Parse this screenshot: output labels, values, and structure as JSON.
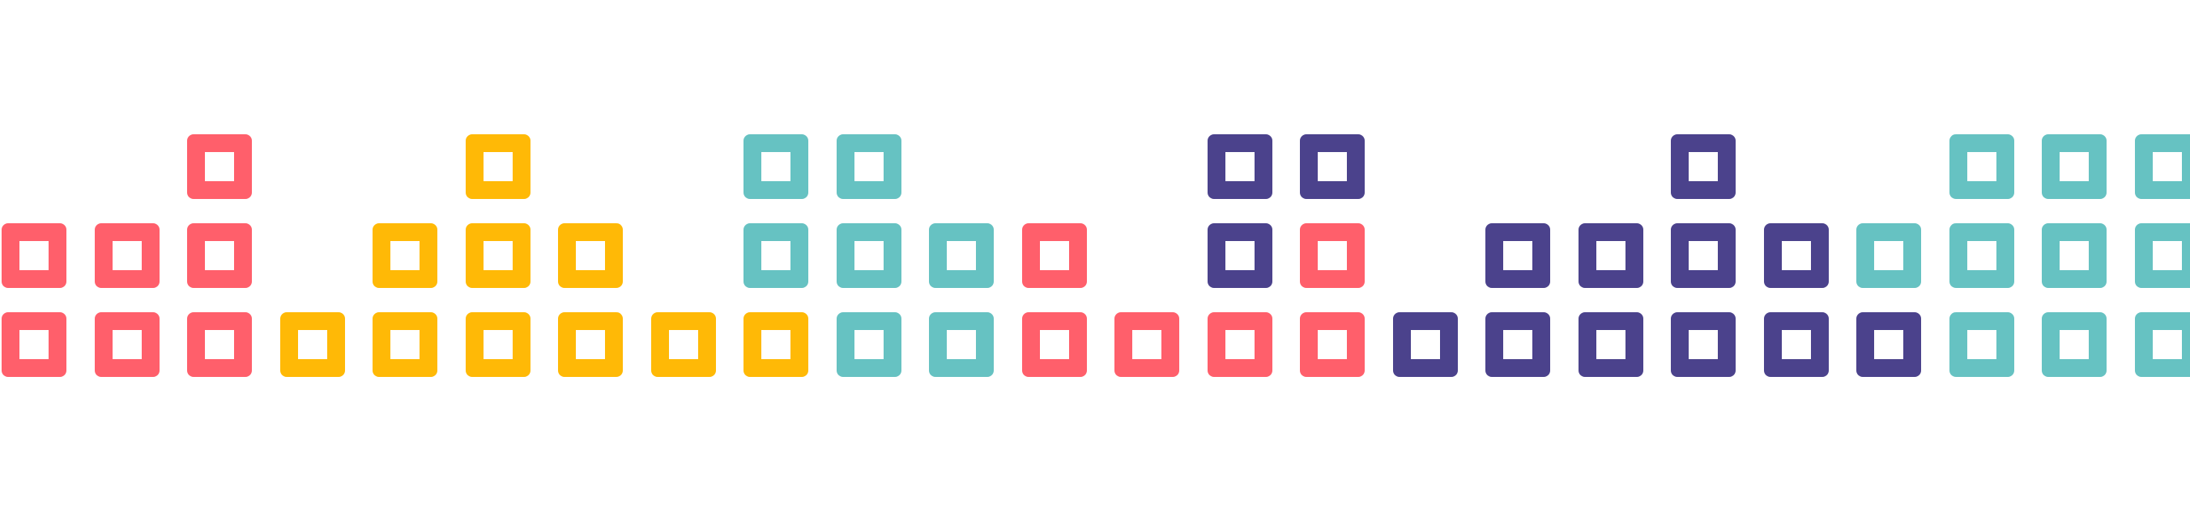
{
  "palette": {
    "red": "#FF5F6B",
    "yellow": "#FFB906",
    "teal": "#66C2C2",
    "purple": "#4B428C"
  },
  "columns": [
    [
      "red",
      "red"
    ],
    [
      "red",
      "red"
    ],
    [
      "red",
      "red",
      "red"
    ],
    [
      "yellow"
    ],
    [
      "yellow",
      "yellow"
    ],
    [
      "yellow",
      "yellow",
      "yellow"
    ],
    [
      "yellow",
      "yellow"
    ],
    [
      "yellow"
    ],
    [
      "yellow",
      "teal",
      "teal"
    ],
    [
      "teal",
      "teal",
      "teal"
    ],
    [
      "teal",
      "teal"
    ],
    [
      "red",
      "red"
    ],
    [
      "red"
    ],
    [
      "red",
      "purple",
      "purple"
    ],
    [
      "red",
      "red",
      "purple"
    ],
    [
      "purple"
    ],
    [
      "purple",
      "purple"
    ],
    [
      "purple",
      "purple"
    ],
    [
      "purple",
      "purple",
      "purple"
    ],
    [
      "purple",
      "purple"
    ],
    [
      "purple",
      "teal"
    ],
    [
      "teal",
      "teal",
      "teal"
    ],
    [
      "teal",
      "teal",
      "teal"
    ],
    [
      "teal",
      "teal",
      "teal"
    ]
  ]
}
